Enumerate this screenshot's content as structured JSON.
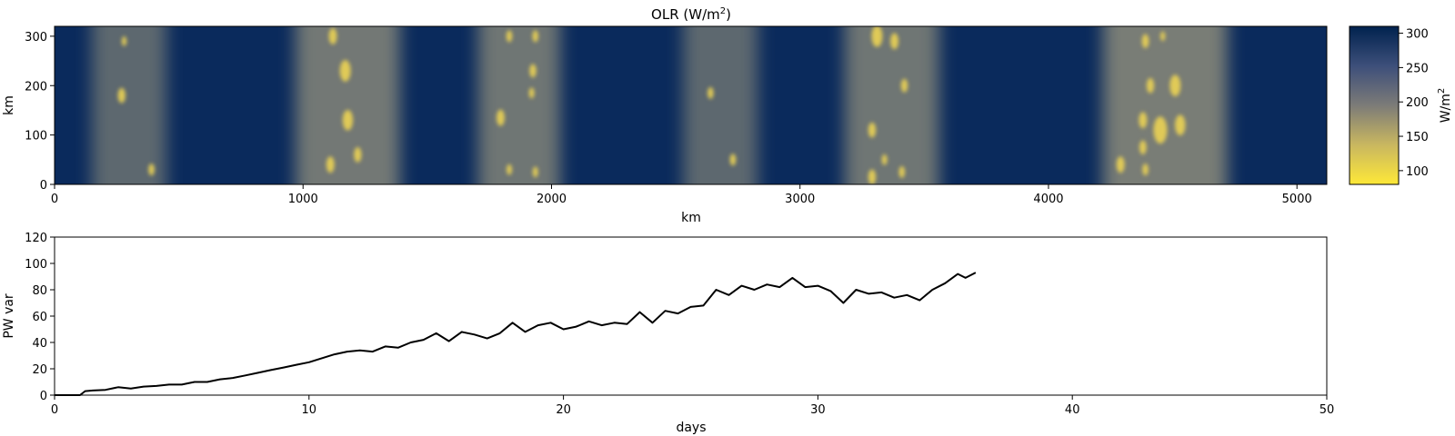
{
  "chart_data": [
    {
      "type": "heatmap",
      "title": "OLR (W/m²)",
      "title_main": "OLR (W/m",
      "title_sup": "2",
      "title_end": ")",
      "xlabel": "km",
      "ylabel": "km",
      "xlim": [
        0,
        5120
      ],
      "ylim": [
        0,
        320
      ],
      "xticks": [
        0,
        1000,
        2000,
        3000,
        4000,
        5000
      ],
      "yticks": [
        0,
        100,
        200,
        300
      ],
      "colormap": "cividis_r",
      "colorbar": {
        "label_main": "W/m",
        "label_sup": "2",
        "range": [
          80,
          310
        ],
        "ticks": [
          100,
          150,
          200,
          250,
          300
        ],
        "high_color": "#00224e",
        "mid_color": "#7c7b78",
        "low_color": "#fee838"
      },
      "convective_bands_km": [
        {
          "center": 300,
          "width": 300,
          "strength": 0.55
        },
        {
          "center": 1180,
          "width": 420,
          "strength": 0.85
        },
        {
          "center": 1870,
          "width": 330,
          "strength": 0.8
        },
        {
          "center": 2680,
          "width": 300,
          "strength": 0.55
        },
        {
          "center": 3370,
          "width": 380,
          "strength": 0.8
        },
        {
          "center": 4470,
          "width": 500,
          "strength": 0.95
        }
      ],
      "deep_clouds": [
        {
          "x": 280,
          "y": 290,
          "r": 18
        },
        {
          "x": 270,
          "y": 180,
          "r": 28
        },
        {
          "x": 390,
          "y": 30,
          "r": 22
        },
        {
          "x": 1120,
          "y": 300,
          "r": 30
        },
        {
          "x": 1170,
          "y": 230,
          "r": 40
        },
        {
          "x": 1180,
          "y": 130,
          "r": 38
        },
        {
          "x": 1110,
          "y": 40,
          "r": 30
        },
        {
          "x": 1220,
          "y": 60,
          "r": 28
        },
        {
          "x": 1830,
          "y": 300,
          "r": 22
        },
        {
          "x": 1935,
          "y": 300,
          "r": 22
        },
        {
          "x": 1925,
          "y": 230,
          "r": 25
        },
        {
          "x": 1920,
          "y": 185,
          "r": 20
        },
        {
          "x": 1795,
          "y": 135,
          "r": 30
        },
        {
          "x": 1830,
          "y": 30,
          "r": 20
        },
        {
          "x": 1935,
          "y": 25,
          "r": 20
        },
        {
          "x": 2640,
          "y": 185,
          "r": 22
        },
        {
          "x": 2730,
          "y": 50,
          "r": 22
        },
        {
          "x": 3310,
          "y": 300,
          "r": 40
        },
        {
          "x": 3380,
          "y": 290,
          "r": 30
        },
        {
          "x": 3420,
          "y": 200,
          "r": 25
        },
        {
          "x": 3290,
          "y": 110,
          "r": 28
        },
        {
          "x": 3340,
          "y": 50,
          "r": 20
        },
        {
          "x": 3290,
          "y": 15,
          "r": 28
        },
        {
          "x": 3410,
          "y": 25,
          "r": 22
        },
        {
          "x": 4390,
          "y": 290,
          "r": 26
        },
        {
          "x": 4460,
          "y": 300,
          "r": 18
        },
        {
          "x": 4410,
          "y": 200,
          "r": 28
        },
        {
          "x": 4510,
          "y": 200,
          "r": 40
        },
        {
          "x": 4380,
          "y": 130,
          "r": 30
        },
        {
          "x": 4450,
          "y": 110,
          "r": 50
        },
        {
          "x": 4530,
          "y": 120,
          "r": 38
        },
        {
          "x": 4380,
          "y": 75,
          "r": 26
        },
        {
          "x": 4290,
          "y": 40,
          "r": 30
        },
        {
          "x": 4390,
          "y": 30,
          "r": 22
        }
      ]
    },
    {
      "type": "line",
      "xlabel": "days",
      "ylabel": "PW var",
      "xlim": [
        0,
        50
      ],
      "ylim": [
        0,
        120
      ],
      "xticks": [
        0,
        10,
        20,
        30,
        40,
        50
      ],
      "yticks": [
        0,
        20,
        40,
        60,
        80,
        100,
        120
      ],
      "line_color": "#000000",
      "series": [
        {
          "x": [
            0,
            1,
            1.2,
            1.5,
            2,
            2.5,
            3,
            3.5,
            4,
            4.5,
            5,
            5.5,
            6,
            6.5,
            7,
            7.5,
            8,
            8.5,
            9,
            9.5,
            10,
            10.5,
            11,
            11.5,
            12,
            12.5,
            13,
            13.5,
            14,
            14.5,
            15,
            15.5,
            16,
            16.5,
            17,
            17.5,
            18,
            18.5,
            19,
            19.5,
            20,
            20.5,
            21,
            21.5,
            22,
            22.5,
            23,
            23.5,
            24,
            24.5,
            25,
            25.5,
            26,
            26.5,
            27,
            27.5,
            28,
            28.5,
            29,
            29.5,
            30,
            30.5,
            31,
            31.5,
            32,
            32.5,
            33,
            33.5,
            34,
            34.5,
            35,
            35.5,
            35.8,
            36.2
          ],
          "y": [
            0,
            0,
            3,
            3.5,
            4,
            6,
            5,
            6.5,
            7,
            8,
            8,
            10,
            10,
            12,
            13,
            15,
            17,
            19,
            21,
            23,
            25,
            28,
            31,
            33,
            34,
            33,
            37,
            36,
            40,
            42,
            47,
            41,
            48,
            46,
            43,
            47,
            55,
            48,
            53,
            55,
            50,
            52,
            56,
            53,
            55,
            54,
            63,
            55,
            64,
            62,
            67,
            68,
            80,
            76,
            83,
            80,
            84,
            82,
            89,
            82,
            83,
            79,
            70,
            80,
            77,
            78,
            74,
            76,
            72,
            80,
            85,
            92,
            89,
            93
          ]
        }
      ]
    }
  ]
}
